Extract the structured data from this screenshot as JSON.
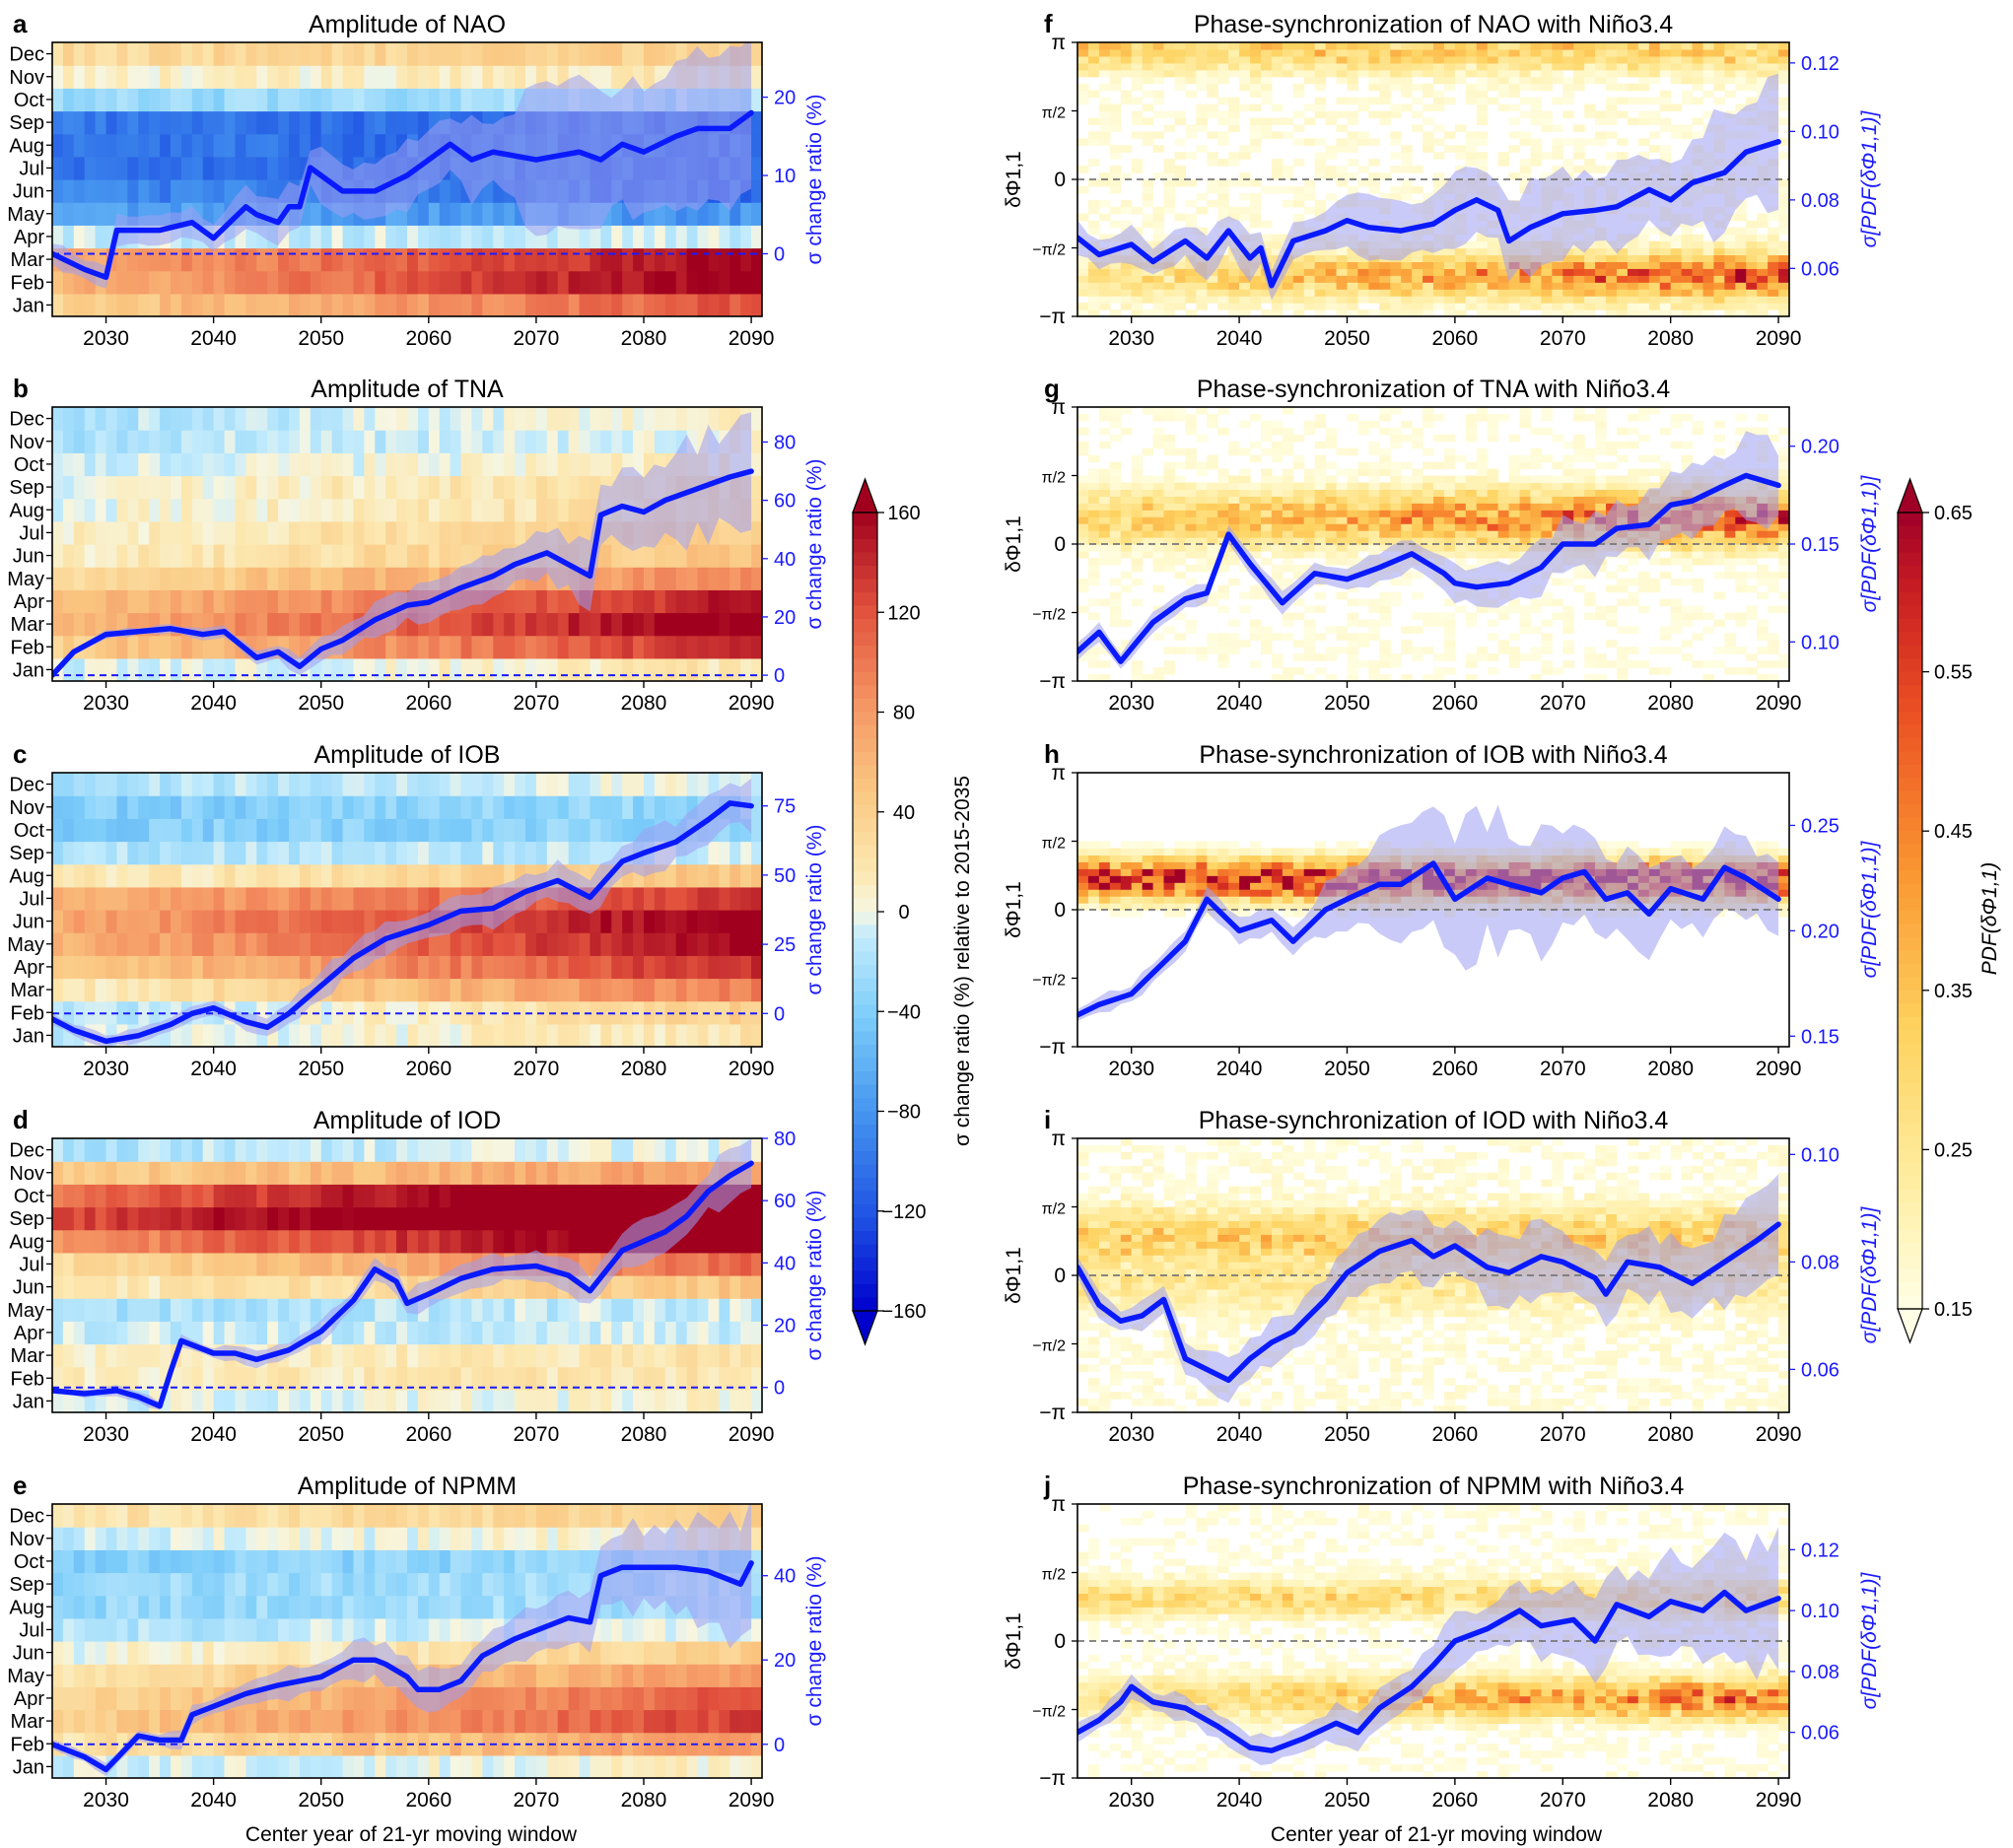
{
  "figure": {
    "xlabel": "Center year of 21-yr moving window",
    "x_range": [
      2025,
      2091
    ],
    "x_ticks": [
      2030,
      2040,
      2050,
      2060,
      2070,
      2080,
      2090
    ],
    "month_labels": [
      "Jan",
      "Feb",
      "Mar",
      "Apr",
      "May",
      "Jun",
      "Jul",
      "Aug",
      "Sep",
      "Oct",
      "Nov",
      "Dec"
    ],
    "phase_tick_labels": [
      "−π",
      "−π/2",
      "0",
      "π/2",
      "π"
    ],
    "left_right_axis_label": "σ change ratio (%)",
    "right_left_axis_label": "δΦ1,1",
    "right_right_axis_label": "σ[PDF(δΦ1,1)]"
  },
  "colorbars": {
    "amplitude": {
      "label": "σ change ratio (%) relative to 2015-2035",
      "ticks": [
        "160",
        "120",
        "80",
        "40",
        "0",
        "−40",
        "−80",
        "−120",
        "−160"
      ],
      "range": [
        -160,
        160
      ]
    },
    "pdf": {
      "label": "PDF(δΦ1,1)",
      "ticks": [
        "0.65",
        "0.55",
        "0.45",
        "0.35",
        "0.25",
        "0.15"
      ],
      "range": [
        0.15,
        0.65
      ]
    }
  },
  "colors": {
    "line": "#0a1aff",
    "band": "#9f9ff2",
    "dashed_amplitude": "#1a1aff",
    "dashed_phase": "#777777",
    "axis_blue": "#1a1aff"
  },
  "panels": {
    "a": {
      "letter": "a",
      "title": "Amplitude of NAO"
    },
    "b": {
      "letter": "b",
      "title": "Amplitude of TNA"
    },
    "c": {
      "letter": "c",
      "title": "Amplitude of IOB"
    },
    "d": {
      "letter": "d",
      "title": "Amplitude of IOD"
    },
    "e": {
      "letter": "e",
      "title": "Amplitude of NPMM"
    },
    "f": {
      "letter": "f",
      "title": "Phase-synchronization of NAO with Niño3.4"
    },
    "g": {
      "letter": "g",
      "title": "Phase-synchronization of TNA with Niño3.4"
    },
    "h": {
      "letter": "h",
      "title": "Phase-synchronization of IOB with Niño3.4"
    },
    "i": {
      "letter": "i",
      "title": "Phase-synchronization of IOD with Niño3.4"
    },
    "j": {
      "letter": "j",
      "title": "Phase-synchronization of NPMM with Niño3.4"
    }
  },
  "chart_data": [
    {
      "id": "a",
      "type": "heatmap+line",
      "title": "Amplitude of NAO",
      "xlabel": "",
      "y_left": "month",
      "ylabel_right": "σ change ratio (%)",
      "y2lim": [
        -8,
        27
      ],
      "y2_ticks": [
        0,
        10,
        20
      ],
      "zero_line": 0,
      "month_change": [
        40,
        60,
        70,
        -10,
        -70,
        -90,
        -100,
        -100,
        -100,
        -30,
        5,
        30
      ],
      "month_trend": [
        80,
        110,
        90,
        0,
        -10,
        -20,
        -10,
        -10,
        -10,
        10,
        10,
        10
      ],
      "line": {
        "x": [
          2025,
          2028,
          2030,
          2031,
          2035,
          2038,
          2040,
          2043,
          2044,
          2046,
          2047,
          2048,
          2049,
          2052,
          2055,
          2058,
          2062,
          2064,
          2066,
          2070,
          2074,
          2076,
          2078,
          2080,
          2083,
          2085,
          2088,
          2090
        ],
        "y": [
          0,
          -2,
          -3,
          3,
          3,
          4,
          2,
          6,
          5,
          4,
          6,
          6,
          11,
          8,
          8,
          10,
          14,
          12,
          13,
          12,
          13,
          12,
          14,
          13,
          15,
          16,
          16,
          18
        ]
      },
      "band": {
        "x": [
          2025,
          2040,
          2050,
          2060,
          2068,
          2070,
          2080,
          2090
        ],
        "half_width": [
          1.5,
          2,
          3,
          4,
          5,
          9,
          9,
          10
        ]
      }
    },
    {
      "id": "b",
      "type": "heatmap+line",
      "title": "Amplitude of TNA",
      "ylabel_right": "σ change ratio (%)",
      "y2lim": [
        -2,
        92
      ],
      "y2_ticks": [
        0,
        20,
        40,
        60,
        80
      ],
      "zero_line": 0,
      "month_change": [
        -10,
        40,
        60,
        50,
        30,
        10,
        5,
        0,
        0,
        -10,
        -20,
        -20
      ],
      "month_trend": [
        30,
        100,
        110,
        100,
        60,
        40,
        40,
        30,
        30,
        20,
        20,
        30
      ],
      "line": {
        "x": [
          2025,
          2027,
          2030,
          2033,
          2036,
          2039,
          2041,
          2044,
          2046,
          2048,
          2050,
          2052,
          2055,
          2058,
          2060,
          2063,
          2066,
          2068,
          2071,
          2073,
          2075,
          2076,
          2078,
          2080,
          2082,
          2085,
          2088,
          2090
        ],
        "y": [
          0,
          8,
          14,
          15,
          16,
          14,
          15,
          6,
          8,
          3,
          9,
          12,
          19,
          24,
          25,
          30,
          34,
          38,
          42,
          38,
          34,
          55,
          58,
          56,
          60,
          64,
          68,
          70
        ]
      },
      "band": {
        "x": [
          2025,
          2045,
          2050,
          2060,
          2070,
          2075,
          2080,
          2090
        ],
        "half_width": [
          1,
          2,
          4,
          6,
          8,
          10,
          14,
          18
        ]
      }
    },
    {
      "id": "c",
      "type": "heatmap+line",
      "title": "Amplitude of IOB",
      "ylabel_right": "σ change ratio (%)",
      "y2lim": [
        -12,
        87
      ],
      "y2_ticks": [
        0,
        25,
        50,
        75
      ],
      "zero_line": 0,
      "month_change": [
        -10,
        -20,
        10,
        40,
        60,
        70,
        60,
        10,
        -20,
        -40,
        -40,
        -20
      ],
      "month_trend": [
        30,
        60,
        90,
        100,
        100,
        100,
        80,
        40,
        10,
        10,
        10,
        20
      ],
      "line": {
        "x": [
          2025,
          2027,
          2030,
          2033,
          2036,
          2038,
          2040,
          2043,
          2045,
          2047,
          2050,
          2053,
          2056,
          2060,
          2063,
          2066,
          2069,
          2072,
          2075,
          2078,
          2080,
          2083,
          2086,
          2088,
          2090
        ],
        "y": [
          -2,
          -6,
          -10,
          -8,
          -4,
          0,
          2,
          -3,
          -5,
          0,
          10,
          20,
          27,
          32,
          37,
          38,
          44,
          48,
          42,
          55,
          58,
          62,
          70,
          76,
          75
        ]
      },
      "band": {
        "x": [
          2025,
          2045,
          2050,
          2060,
          2070,
          2080,
          2090
        ],
        "half_width": [
          2,
          3,
          5,
          6,
          6,
          7,
          8
        ]
      }
    },
    {
      "id": "d",
      "type": "heatmap+line",
      "title": "Amplitude of IOD",
      "ylabel_right": "σ change ratio (%)",
      "y2lim": [
        -8,
        80
      ],
      "y2_ticks": [
        0,
        20,
        40,
        60,
        80
      ],
      "zero_line": 0,
      "month_change": [
        -5,
        10,
        10,
        -10,
        -20,
        10,
        30,
        80,
        120,
        100,
        40,
        -20
      ],
      "month_trend": [
        10,
        10,
        10,
        0,
        10,
        40,
        80,
        110,
        120,
        110,
        40,
        20
      ],
      "line": {
        "x": [
          2025,
          2028,
          2031,
          2033,
          2035,
          2036,
          2037,
          2040,
          2042,
          2044,
          2047,
          2050,
          2053,
          2055,
          2057,
          2058,
          2060,
          2063,
          2066,
          2070,
          2073,
          2075,
          2078,
          2080,
          2082,
          2084,
          2086,
          2088,
          2090
        ],
        "y": [
          -1,
          -2,
          -1,
          -3,
          -6,
          5,
          15,
          11,
          11,
          9,
          12,
          18,
          28,
          38,
          34,
          27,
          30,
          35,
          38,
          39,
          36,
          31,
          44,
          47,
          50,
          55,
          63,
          68,
          72
        ]
      },
      "band": {
        "x": [
          2025,
          2040,
          2050,
          2060,
          2070,
          2080,
          2090
        ],
        "half_width": [
          1,
          2,
          3,
          4,
          4,
          6,
          8
        ]
      }
    },
    {
      "id": "e",
      "type": "heatmap+line",
      "title": "Amplitude of NPMM",
      "ylabel_right": "σ change ratio (%)",
      "y2lim": [
        -8,
        57
      ],
      "y2_ticks": [
        0,
        20,
        40
      ],
      "zero_line": 0,
      "month_change": [
        -10,
        20,
        40,
        30,
        20,
        0,
        -20,
        -30,
        -30,
        -40,
        -10,
        20
      ],
      "month_trend": [
        20,
        60,
        90,
        90,
        60,
        40,
        20,
        10,
        10,
        10,
        20,
        20
      ],
      "line": {
        "x": [
          2025,
          2028,
          2030,
          2033,
          2035,
          2037,
          2038,
          2040,
          2043,
          2046,
          2050,
          2053,
          2055,
          2056,
          2058,
          2059,
          2061,
          2063,
          2065,
          2068,
          2071,
          2073,
          2075,
          2076,
          2078,
          2081,
          2083,
          2086,
          2089,
          2090
        ],
        "y": [
          0,
          -3,
          -6,
          2,
          1,
          1,
          7,
          9,
          12,
          14,
          16,
          20,
          20,
          19,
          16,
          13,
          13,
          15,
          21,
          25,
          28,
          30,
          29,
          40,
          42,
          42,
          42,
          41,
          38,
          43
        ]
      },
      "band": {
        "x": [
          2025,
          2040,
          2050,
          2060,
          2070,
          2075,
          2080,
          2090
        ],
        "half_width": [
          1,
          2,
          4,
          5,
          5,
          8,
          10,
          14
        ]
      }
    },
    {
      "id": "f",
      "type": "heatmap+line",
      "title": "Phase-synchronization of NAO with Niño3.4",
      "ylabel_left": "δΦ1,1",
      "ylabel_right": "σ[PDF(δΦ1,1)]",
      "y2lim": [
        0.046,
        0.126
      ],
      "y2_ticks": [
        0.06,
        0.08,
        0.1,
        0.12
      ],
      "line": {
        "x": [
          2025,
          2027,
          2030,
          2032,
          2035,
          2037,
          2039,
          2041,
          2042,
          2043,
          2045,
          2048,
          2050,
          2052,
          2055,
          2058,
          2060,
          2062,
          2064,
          2065,
          2067,
          2070,
          2073,
          2075,
          2078,
          2080,
          2082,
          2085,
          2087,
          2090
        ],
        "y": [
          0.069,
          0.064,
          0.067,
          0.062,
          0.068,
          0.063,
          0.071,
          0.063,
          0.066,
          0.055,
          0.068,
          0.071,
          0.074,
          0.072,
          0.071,
          0.073,
          0.077,
          0.08,
          0.077,
          0.068,
          0.072,
          0.076,
          0.077,
          0.078,
          0.083,
          0.08,
          0.085,
          0.088,
          0.094,
          0.097
        ]
      },
      "band": {
        "x": [
          2025,
          2045,
          2060,
          2070,
          2080,
          2090
        ],
        "half_width": [
          0.004,
          0.006,
          0.01,
          0.012,
          0.012,
          0.02
        ]
      }
    },
    {
      "id": "g",
      "type": "heatmap+line",
      "title": "Phase-synchronization of TNA with Niño3.4",
      "ylabel_left": "δΦ1,1",
      "ylabel_right": "σ[PDF(δΦ1,1)]",
      "y2lim": [
        0.08,
        0.22
      ],
      "y2_ticks": [
        0.1,
        0.15,
        0.2
      ],
      "line": {
        "x": [
          2025,
          2027,
          2029,
          2032,
          2035,
          2037,
          2039,
          2041,
          2044,
          2047,
          2050,
          2053,
          2056,
          2059,
          2060,
          2062,
          2065,
          2068,
          2070,
          2073,
          2075,
          2078,
          2080,
          2082,
          2085,
          2087,
          2090
        ],
        "y": [
          0.095,
          0.105,
          0.09,
          0.11,
          0.122,
          0.125,
          0.155,
          0.14,
          0.12,
          0.135,
          0.132,
          0.138,
          0.145,
          0.135,
          0.13,
          0.128,
          0.13,
          0.138,
          0.15,
          0.15,
          0.158,
          0.16,
          0.17,
          0.172,
          0.18,
          0.185,
          0.18
        ]
      },
      "band": {
        "x": [
          2025,
          2045,
          2060,
          2070,
          2080,
          2090
        ],
        "half_width": [
          0.004,
          0.005,
          0.01,
          0.012,
          0.016,
          0.02
        ]
      }
    },
    {
      "id": "h",
      "type": "heatmap+line",
      "title": "Phase-synchronization of IOB with Niño3.4",
      "ylabel_left": "δΦ1,1",
      "ylabel_right": "σ[PDF(δΦ1,1)]",
      "y2lim": [
        0.145,
        0.275
      ],
      "y2_ticks": [
        0.15,
        0.2,
        0.25
      ],
      "line": {
        "x": [
          2025,
          2027,
          2030,
          2033,
          2035,
          2037,
          2040,
          2043,
          2045,
          2048,
          2050,
          2053,
          2055,
          2058,
          2060,
          2063,
          2065,
          2068,
          2070,
          2072,
          2074,
          2076,
          2078,
          2080,
          2083,
          2085,
          2087,
          2090
        ],
        "y": [
          0.16,
          0.165,
          0.17,
          0.185,
          0.195,
          0.215,
          0.2,
          0.205,
          0.195,
          0.21,
          0.215,
          0.222,
          0.222,
          0.232,
          0.215,
          0.225,
          0.222,
          0.218,
          0.225,
          0.228,
          0.215,
          0.218,
          0.208,
          0.22,
          0.215,
          0.23,
          0.225,
          0.215
        ]
      },
      "band": {
        "x": [
          2025,
          2045,
          2060,
          2070,
          2080,
          2090
        ],
        "half_width": [
          0.004,
          0.006,
          0.03,
          0.025,
          0.015,
          0.02
        ]
      }
    },
    {
      "id": "i",
      "type": "heatmap+line",
      "title": "Phase-synchronization of IOD with Niño3.4",
      "ylabel_left": "δΦ1,1",
      "ylabel_right": "σ[PDF(δΦ1,1)]",
      "y2lim": [
        0.052,
        0.103
      ],
      "y2_ticks": [
        0.06,
        0.08,
        0.1
      ],
      "line": {
        "x": [
          2025,
          2027,
          2029,
          2031,
          2033,
          2035,
          2037,
          2039,
          2041,
          2043,
          2045,
          2048,
          2050,
          2053,
          2056,
          2058,
          2060,
          2063,
          2065,
          2068,
          2070,
          2073,
          2074,
          2076,
          2079,
          2082,
          2085,
          2088,
          2090
        ],
        "y": [
          0.079,
          0.072,
          0.069,
          0.07,
          0.073,
          0.062,
          0.06,
          0.058,
          0.062,
          0.065,
          0.067,
          0.073,
          0.078,
          0.082,
          0.084,
          0.081,
          0.083,
          0.079,
          0.078,
          0.081,
          0.08,
          0.077,
          0.074,
          0.08,
          0.079,
          0.076,
          0.08,
          0.084,
          0.087
        ]
      },
      "band": {
        "x": [
          2025,
          2045,
          2060,
          2070,
          2080,
          2090
        ],
        "half_width": [
          0.002,
          0.004,
          0.006,
          0.006,
          0.006,
          0.008
        ]
      }
    },
    {
      "id": "j",
      "type": "heatmap+line",
      "title": "Phase-synchronization of NPMM with Niño3.4",
      "xlabel": "Center year of 21-yr moving window",
      "ylabel_left": "δΦ1,1",
      "ylabel_right": "σ[PDF(δΦ1,1)]",
      "y2lim": [
        0.045,
        0.135
      ],
      "y2_ticks": [
        0.06,
        0.08,
        0.1,
        0.12
      ],
      "line": {
        "x": [
          2025,
          2027,
          2029,
          2030,
          2032,
          2035,
          2038,
          2041,
          2043,
          2046,
          2049,
          2051,
          2053,
          2056,
          2058,
          2060,
          2063,
          2066,
          2068,
          2071,
          2073,
          2075,
          2078,
          2080,
          2083,
          2085,
          2087,
          2090
        ],
        "y": [
          0.06,
          0.064,
          0.07,
          0.075,
          0.07,
          0.068,
          0.062,
          0.055,
          0.054,
          0.058,
          0.063,
          0.06,
          0.068,
          0.075,
          0.082,
          0.09,
          0.094,
          0.1,
          0.095,
          0.097,
          0.09,
          0.102,
          0.098,
          0.103,
          0.1,
          0.106,
          0.1,
          0.104
        ]
      },
      "band": {
        "x": [
          2025,
          2045,
          2060,
          2070,
          2080,
          2090
        ],
        "half_width": [
          0.003,
          0.005,
          0.008,
          0.01,
          0.014,
          0.022
        ]
      }
    }
  ]
}
